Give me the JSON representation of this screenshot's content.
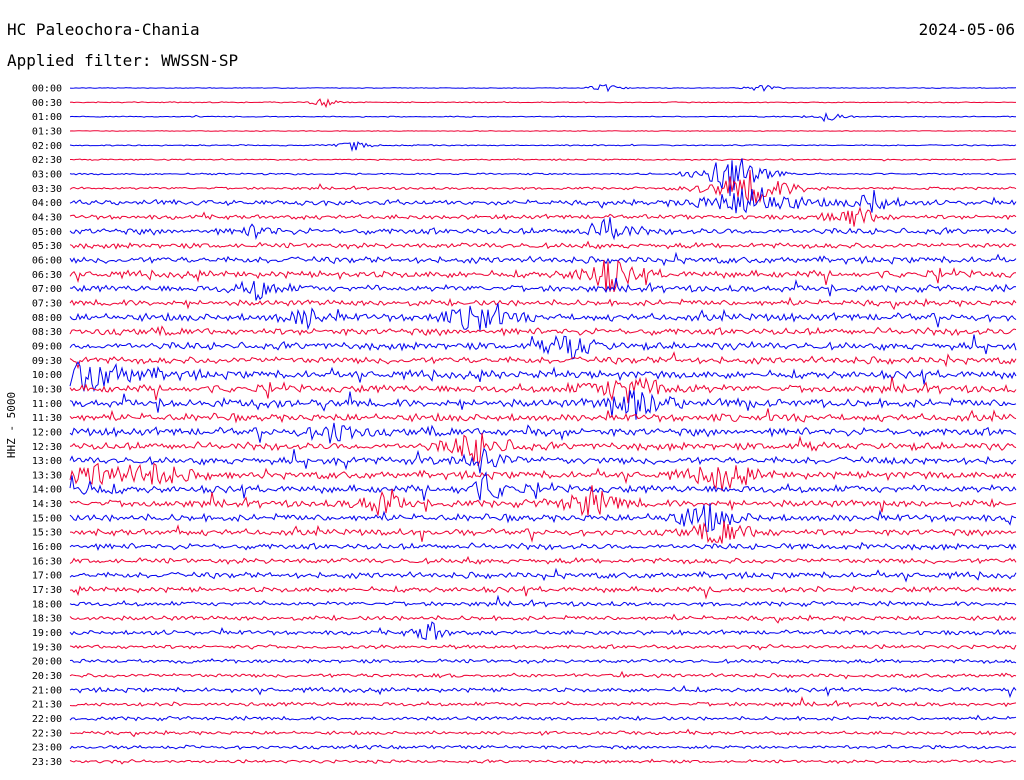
{
  "header": {
    "station": "HC Paleochora-Chania",
    "date": "2024-05-06",
    "filter": "Applied filter: WWSSN-SP"
  },
  "chart_data": {
    "type": "line",
    "title": "HC Paleochora-Chania",
    "ylabel": "HHZ - 5000",
    "row_labels": [
      "00:00",
      "00:30",
      "01:00",
      "01:30",
      "02:00",
      "02:30",
      "03:00",
      "03:30",
      "04:00",
      "04:30",
      "05:00",
      "05:30",
      "06:00",
      "06:30",
      "07:00",
      "07:30",
      "08:00",
      "08:30",
      "09:00",
      "09:30",
      "10:00",
      "10:30",
      "11:00",
      "11:30",
      "12:00",
      "12:30",
      "13:00",
      "13:30",
      "14:00",
      "14:30",
      "15:00",
      "15:30",
      "16:00",
      "16:30",
      "17:00",
      "17:30",
      "18:00",
      "18:30",
      "19:00",
      "19:30",
      "20:00",
      "20:30",
      "21:00",
      "21:30",
      "22:00",
      "22:30",
      "23:00",
      "23:30"
    ],
    "series_colors": [
      "#0000ee",
      "#ee0033"
    ],
    "noise_level": [
      0.3,
      0.4,
      0.4,
      0.3,
      0.5,
      0.6,
      0.7,
      1.0,
      2.0,
      1.8,
      2.5,
      2.2,
      2.6,
      2.8,
      2.6,
      2.4,
      3.0,
      2.8,
      3.0,
      2.8,
      3.2,
      3.0,
      3.2,
      3.0,
      3.2,
      3.0,
      3.0,
      3.0,
      3.0,
      2.8,
      2.8,
      2.6,
      2.4,
      2.2,
      2.4,
      2.2,
      1.8,
      1.8,
      1.8,
      1.6,
      1.6,
      1.6,
      1.8,
      1.6,
      1.5,
      1.4,
      1.4,
      1.3
    ],
    "events": [
      {
        "row": 0,
        "t": 0.565,
        "amp": 6,
        "dur": 0.01
      },
      {
        "row": 0,
        "t": 0.73,
        "amp": 5,
        "dur": 0.01
      },
      {
        "row": 1,
        "t": 0.27,
        "amp": 5,
        "dur": 0.01
      },
      {
        "row": 2,
        "t": 0.8,
        "amp": 6,
        "dur": 0.01
      },
      {
        "row": 4,
        "t": 0.3,
        "amp": 6,
        "dur": 0.01
      },
      {
        "row": 6,
        "t": 0.7,
        "amp": 28,
        "dur": 0.02
      },
      {
        "row": 7,
        "t": 0.72,
        "amp": 18,
        "dur": 0.03
      },
      {
        "row": 8,
        "t": 0.72,
        "amp": 20,
        "dur": 0.03
      },
      {
        "row": 8,
        "t": 0.85,
        "amp": 12,
        "dur": 0.015
      },
      {
        "row": 9,
        "t": 0.83,
        "amp": 14,
        "dur": 0.015
      },
      {
        "row": 10,
        "t": 0.2,
        "amp": 9,
        "dur": 0.01
      },
      {
        "row": 10,
        "t": 0.57,
        "amp": 14,
        "dur": 0.015
      },
      {
        "row": 13,
        "t": 0.57,
        "amp": 18,
        "dur": 0.02
      },
      {
        "row": 14,
        "t": 0.2,
        "amp": 12,
        "dur": 0.015
      },
      {
        "row": 16,
        "t": 0.43,
        "amp": 16,
        "dur": 0.02
      },
      {
        "row": 16,
        "t": 0.25,
        "amp": 10,
        "dur": 0.015
      },
      {
        "row": 18,
        "t": 0.53,
        "amp": 16,
        "dur": 0.015
      },
      {
        "row": 20,
        "t": 0.02,
        "amp": 16,
        "dur": 0.04
      },
      {
        "row": 21,
        "t": 0.59,
        "amp": 14,
        "dur": 0.03
      },
      {
        "row": 22,
        "t": 0.6,
        "amp": 18,
        "dur": 0.02
      },
      {
        "row": 24,
        "t": 0.28,
        "amp": 14,
        "dur": 0.015
      },
      {
        "row": 25,
        "t": 0.43,
        "amp": 18,
        "dur": 0.02
      },
      {
        "row": 26,
        "t": 0.44,
        "amp": 14,
        "dur": 0.015
      },
      {
        "row": 27,
        "t": 0.03,
        "amp": 14,
        "dur": 0.02
      },
      {
        "row": 27,
        "t": 0.09,
        "amp": 14,
        "dur": 0.02
      },
      {
        "row": 27,
        "t": 0.69,
        "amp": 14,
        "dur": 0.02
      },
      {
        "row": 28,
        "t": 0.0,
        "amp": 14,
        "dur": 0.02
      },
      {
        "row": 28,
        "t": 0.44,
        "amp": 14,
        "dur": 0.015
      },
      {
        "row": 29,
        "t": 0.33,
        "amp": 14,
        "dur": 0.015
      },
      {
        "row": 29,
        "t": 0.55,
        "amp": 16,
        "dur": 0.02
      },
      {
        "row": 30,
        "t": 0.67,
        "amp": 16,
        "dur": 0.02
      },
      {
        "row": 31,
        "t": 0.69,
        "amp": 14,
        "dur": 0.02
      },
      {
        "row": 38,
        "t": 0.38,
        "amp": 14,
        "dur": 0.01
      }
    ]
  }
}
